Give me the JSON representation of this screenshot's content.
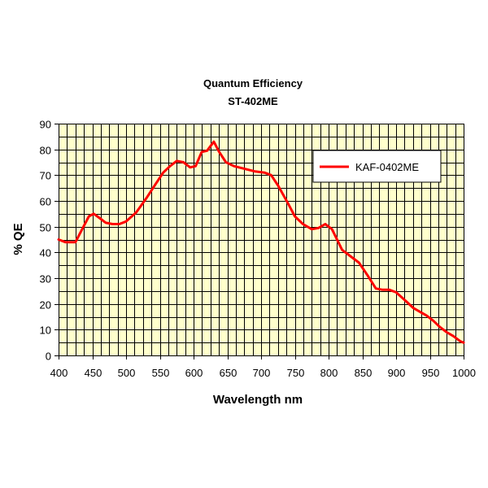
{
  "chart_data": {
    "type": "line",
    "title": "Quantum Efficiency",
    "subtitle": "ST-402ME",
    "xlabel": "Wavelength nm",
    "ylabel": "% QE",
    "xlim": [
      400,
      1000
    ],
    "ylim": [
      0,
      90
    ],
    "x_major_ticks": [
      400,
      450,
      500,
      550,
      600,
      650,
      700,
      750,
      800,
      850,
      900,
      950,
      1000
    ],
    "y_major_ticks": [
      0,
      10,
      20,
      30,
      40,
      50,
      60,
      70,
      80,
      90
    ],
    "x_grid_step": 12.5,
    "y_grid_step": 5,
    "grid": true,
    "legend_position": "top-right",
    "colors": {
      "plot_background": "#ffffcc",
      "series": "#ff0000",
      "grid": "#000000"
    },
    "series": [
      {
        "name": "KAF-0402ME",
        "points": [
          [
            400,
            45
          ],
          [
            410,
            44
          ],
          [
            425,
            44
          ],
          [
            435,
            49
          ],
          [
            445,
            54
          ],
          [
            452,
            55
          ],
          [
            460,
            53.5
          ],
          [
            470,
            51.5
          ],
          [
            480,
            51
          ],
          [
            490,
            51
          ],
          [
            500,
            52
          ],
          [
            515,
            55.5
          ],
          [
            530,
            61
          ],
          [
            545,
            67
          ],
          [
            555,
            71
          ],
          [
            565,
            73.5
          ],
          [
            575,
            75.5
          ],
          [
            585,
            75
          ],
          [
            595,
            73
          ],
          [
            603,
            73.5
          ],
          [
            612,
            79
          ],
          [
            620,
            79.5
          ],
          [
            630,
            83
          ],
          [
            638,
            79
          ],
          [
            648,
            75
          ],
          [
            660,
            73.5
          ],
          [
            675,
            72.5
          ],
          [
            690,
            71.5
          ],
          [
            705,
            71
          ],
          [
            715,
            70
          ],
          [
            725,
            66
          ],
          [
            740,
            59
          ],
          [
            750,
            54
          ],
          [
            762,
            51
          ],
          [
            775,
            49
          ],
          [
            785,
            49.5
          ],
          [
            795,
            51
          ],
          [
            805,
            49
          ],
          [
            820,
            41
          ],
          [
            830,
            39
          ],
          [
            845,
            36
          ],
          [
            858,
            31
          ],
          [
            870,
            26
          ],
          [
            880,
            25.5
          ],
          [
            890,
            25.5
          ],
          [
            900,
            24.5
          ],
          [
            915,
            21
          ],
          [
            925,
            18.5
          ],
          [
            935,
            17
          ],
          [
            945,
            15.5
          ],
          [
            955,
            13.5
          ],
          [
            965,
            11
          ],
          [
            975,
            9
          ],
          [
            985,
            7.5
          ],
          [
            995,
            5.5
          ],
          [
            1000,
            5
          ]
        ]
      }
    ]
  }
}
